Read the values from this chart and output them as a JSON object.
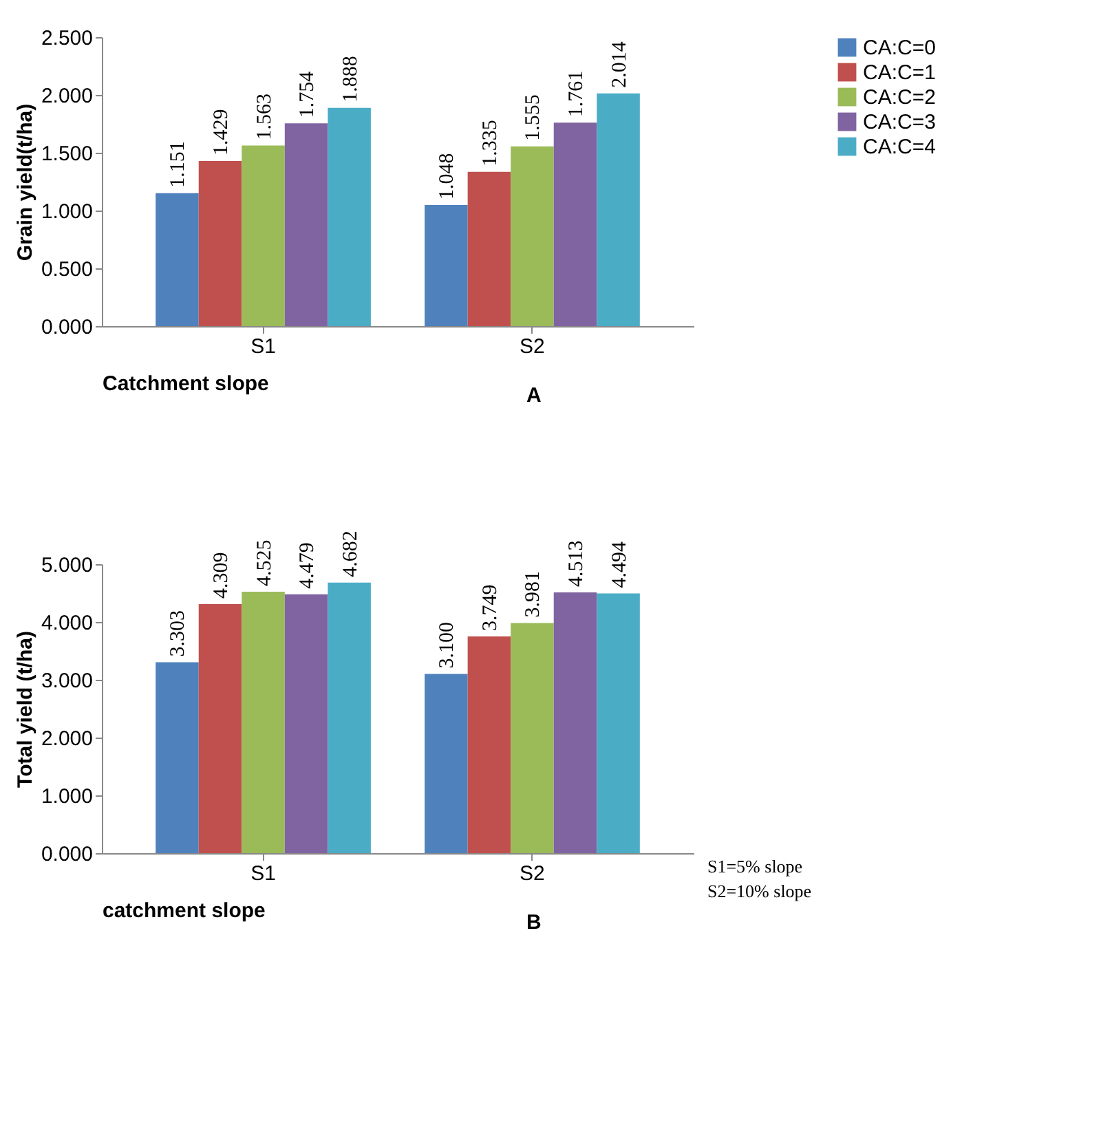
{
  "chart_data": [
    {
      "type": "bar",
      "ylabel": "Grain yield(t/ha)",
      "xlabel": "Catchment slope",
      "categories": [
        "S1",
        "S2"
      ],
      "ylim": [
        0,
        2.5
      ],
      "yticks": [
        {
          "value": 0,
          "label": "0.000"
        },
        {
          "value": 0.5,
          "label": "0.500"
        },
        {
          "value": 1,
          "label": "1.000"
        },
        {
          "value": 1.5,
          "label": "1.500"
        },
        {
          "value": 2,
          "label": "2.000"
        },
        {
          "value": 2.5,
          "label": "2.500"
        }
      ],
      "legend": "right",
      "annotations": [
        "A"
      ],
      "series": [
        {
          "name": "CA:C=0",
          "color": "#4f81bd",
          "values": [
            1.151,
            1.048
          ],
          "value_labels": [
            "1.151",
            "1.048"
          ]
        },
        {
          "name": "CA:C=1",
          "color": "#c0504d",
          "values": [
            1.429,
            1.335
          ],
          "value_labels": [
            "1.429",
            "1.335"
          ]
        },
        {
          "name": "CA:C=2",
          "color": "#9bbb59",
          "values": [
            1.563,
            1.555
          ],
          "value_labels": [
            "1.563",
            "1.555"
          ]
        },
        {
          "name": "CA:C=3",
          "color": "#8064a2",
          "values": [
            1.754,
            1.761
          ],
          "value_labels": [
            "1.754",
            "1.761"
          ]
        },
        {
          "name": "CA:C=4",
          "color": "#4bacc6",
          "values": [
            1.888,
            2.014
          ],
          "value_labels": [
            "1.888",
            "2.014"
          ]
        }
      ]
    },
    {
      "type": "bar",
      "ylabel": "Total yield (t/ha)",
      "xlabel": "catchment slope",
      "categories": [
        "S1",
        "S2"
      ],
      "ylim": [
        0,
        5
      ],
      "yticks": [
        {
          "value": 0,
          "label": "0.000"
        },
        {
          "value": 1,
          "label": "1.000"
        },
        {
          "value": 2,
          "label": "2.000"
        },
        {
          "value": 3,
          "label": "3.000"
        },
        {
          "value": 4,
          "label": "4.000"
        },
        {
          "value": 5,
          "label": "5.000"
        }
      ],
      "legend": "right",
      "annotations": [
        "B",
        "S1=5% slope",
        "S2=10% slope"
      ],
      "series": [
        {
          "name": "CA:C=0",
          "color": "#4f81bd",
          "values": [
            3.303,
            3.1
          ],
          "value_labels": [
            "3.303",
            "3.100"
          ]
        },
        {
          "name": "CA:C=1",
          "color": "#c0504d",
          "values": [
            4.309,
            3.749
          ],
          "value_labels": [
            "4.309",
            "3.749"
          ]
        },
        {
          "name": "CA:C=2",
          "color": "#9bbb59",
          "values": [
            4.525,
            3.981
          ],
          "value_labels": [
            "4.525",
            "3.981"
          ]
        },
        {
          "name": "CA:C=3",
          "color": "#8064a2",
          "values": [
            4.479,
            4.513
          ],
          "value_labels": [
            "4.479",
            "4.513"
          ]
        },
        {
          "name": "CA:C=4",
          "color": "#4bacc6",
          "values": [
            4.682,
            4.494
          ],
          "value_labels": [
            "4.682",
            "4.494"
          ]
        }
      ]
    }
  ]
}
